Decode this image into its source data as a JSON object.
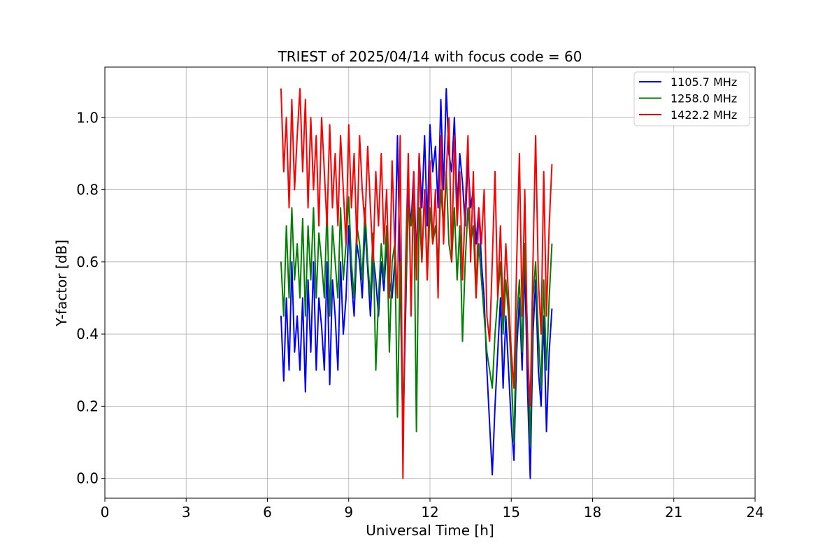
{
  "chart_data": {
    "type": "line",
    "title": "TRIEST of 2025/04/14 with focus code = 60",
    "xlabel": "Universal Time [h]",
    "ylabel": "Y-factor [dB]",
    "xlim": [
      0,
      24
    ],
    "ylim": [
      -0.055,
      1.14
    ],
    "xticks": [
      "0",
      "3",
      "6",
      "9",
      "12",
      "15",
      "18",
      "21",
      "24"
    ],
    "xtick_values": [
      0,
      3,
      6,
      9,
      12,
      15,
      18,
      21,
      24
    ],
    "yticks": [
      "0.0",
      "0.2",
      "0.4",
      "0.6",
      "0.8",
      "1.0"
    ],
    "ytick_values": [
      0.0,
      0.2,
      0.4,
      0.6,
      0.8,
      1.0
    ],
    "grid": true,
    "legend_position": "top-right",
    "series": [
      {
        "name": "1105.7 MHz",
        "color": "#0000ff",
        "x": [
          6.5,
          6.6,
          6.7,
          6.8,
          6.9,
          7.0,
          7.1,
          7.2,
          7.3,
          7.4,
          7.5,
          7.6,
          7.7,
          7.8,
          7.9,
          8.0,
          8.1,
          8.2,
          8.3,
          8.4,
          8.5,
          8.6,
          8.7,
          8.8,
          8.9,
          9.0,
          9.1,
          9.2,
          9.3,
          9.4,
          9.5,
          9.6,
          9.7,
          9.8,
          9.9,
          10.0,
          10.1,
          10.2,
          10.3,
          10.4,
          10.5,
          10.6,
          10.7,
          10.8,
          10.9,
          11.0,
          11.1,
          11.2,
          11.3,
          11.4,
          11.5,
          11.6,
          11.7,
          11.8,
          11.9,
          12.0,
          12.1,
          12.2,
          12.3,
          12.4,
          12.5,
          12.6,
          12.7,
          12.8,
          12.9,
          13.0,
          13.1,
          13.2,
          13.3,
          13.4,
          13.5,
          13.6,
          13.7,
          13.8,
          13.9,
          14.0,
          14.1,
          14.2,
          14.3,
          14.4,
          14.5,
          14.6,
          14.7,
          14.8,
          14.9,
          15.0,
          15.1,
          15.2,
          15.3,
          15.4,
          15.5,
          15.6,
          15.7,
          15.8,
          15.9,
          16.0,
          16.1,
          16.2,
          16.3,
          16.4,
          16.5
        ],
        "y": [
          0.45,
          0.27,
          0.5,
          0.3,
          0.6,
          0.35,
          0.45,
          0.3,
          0.5,
          0.24,
          0.55,
          0.35,
          0.6,
          0.3,
          0.5,
          0.42,
          0.3,
          0.6,
          0.26,
          0.55,
          0.45,
          0.3,
          0.6,
          0.4,
          0.5,
          0.7,
          0.55,
          0.45,
          0.65,
          0.6,
          0.5,
          0.7,
          0.58,
          0.45,
          0.62,
          0.55,
          0.45,
          0.6,
          0.52,
          0.65,
          0.55,
          0.5,
          0.6,
          0.95,
          0.55,
          0.12,
          0.45,
          0.8,
          0.7,
          0.85,
          0.6,
          0.9,
          0.75,
          0.95,
          0.7,
          0.98,
          0.85,
          0.92,
          0.75,
          1.05,
          0.8,
          1.08,
          0.9,
          0.85,
          1.0,
          0.75,
          0.9,
          0.82,
          0.7,
          0.88,
          0.75,
          0.8,
          0.65,
          0.75,
          0.6,
          0.5,
          0.3,
          0.15,
          0.01,
          0.2,
          0.35,
          0.5,
          0.25,
          0.45,
          0.3,
          0.15,
          0.05,
          0.35,
          0.5,
          0.3,
          0.6,
          0.25,
          0.0,
          0.4,
          0.55,
          0.3,
          0.2,
          0.45,
          0.13,
          0.35,
          0.47
        ]
      },
      {
        "name": "1258.0 MHz",
        "color": "#008000",
        "x": [
          6.5,
          6.6,
          6.7,
          6.8,
          6.9,
          7.0,
          7.1,
          7.2,
          7.3,
          7.4,
          7.5,
          7.6,
          7.7,
          7.8,
          7.9,
          8.0,
          8.1,
          8.2,
          8.3,
          8.4,
          8.5,
          8.6,
          8.7,
          8.8,
          8.9,
          9.0,
          9.1,
          9.2,
          9.3,
          9.4,
          9.5,
          9.6,
          9.7,
          9.8,
          9.9,
          10.0,
          10.1,
          10.2,
          10.3,
          10.4,
          10.5,
          10.6,
          10.7,
          10.8,
          10.9,
          11.0,
          11.1,
          11.2,
          11.3,
          11.4,
          11.5,
          11.6,
          11.7,
          11.8,
          11.9,
          12.0,
          12.1,
          12.2,
          12.3,
          12.4,
          12.5,
          12.6,
          12.7,
          12.8,
          12.9,
          13.0,
          13.1,
          13.2,
          13.3,
          13.4,
          13.5,
          13.6,
          13.7,
          13.8,
          13.9,
          14.0,
          14.1,
          14.2,
          14.3,
          14.4,
          14.5,
          14.6,
          14.7,
          14.8,
          14.9,
          15.0,
          15.1,
          15.2,
          15.3,
          15.4,
          15.5,
          15.6,
          15.7,
          15.8,
          15.9,
          16.0,
          16.1,
          16.2,
          16.3,
          16.4,
          16.5
        ],
        "y": [
          0.6,
          0.45,
          0.7,
          0.5,
          0.75,
          0.55,
          0.65,
          0.5,
          0.72,
          0.45,
          0.7,
          0.55,
          0.75,
          0.5,
          0.68,
          0.6,
          0.5,
          0.75,
          0.45,
          0.7,
          0.6,
          0.5,
          0.75,
          0.55,
          0.65,
          0.78,
          0.6,
          0.5,
          0.7,
          0.65,
          0.55,
          0.75,
          0.6,
          0.5,
          0.68,
          0.3,
          0.5,
          0.65,
          0.55,
          0.7,
          0.35,
          0.6,
          0.65,
          0.17,
          0.6,
          0.15,
          0.5,
          0.75,
          0.7,
          0.8,
          0.13,
          0.75,
          0.6,
          0.8,
          0.55,
          0.75,
          0.65,
          0.7,
          0.6,
          0.8,
          0.7,
          0.85,
          0.65,
          0.6,
          0.75,
          0.55,
          0.7,
          0.38,
          0.6,
          0.75,
          0.65,
          0.7,
          0.5,
          0.65,
          0.55,
          0.45,
          0.35,
          0.3,
          0.25,
          0.4,
          0.5,
          0.6,
          0.4,
          0.55,
          0.45,
          0.3,
          0.1,
          0.45,
          0.55,
          0.35,
          0.65,
          0.4,
          0.09,
          0.5,
          0.6,
          0.4,
          0.25,
          0.55,
          0.3,
          0.5,
          0.65
        ]
      },
      {
        "name": "1422.2 MHz",
        "color": "#ff0000",
        "x": [
          6.5,
          6.6,
          6.7,
          6.8,
          6.9,
          7.0,
          7.1,
          7.2,
          7.3,
          7.4,
          7.5,
          7.6,
          7.7,
          7.8,
          7.9,
          8.0,
          8.1,
          8.2,
          8.3,
          8.4,
          8.5,
          8.6,
          8.7,
          8.8,
          8.9,
          9.0,
          9.1,
          9.2,
          9.3,
          9.4,
          9.5,
          9.6,
          9.7,
          9.8,
          9.9,
          10.0,
          10.1,
          10.2,
          10.3,
          10.4,
          10.5,
          10.6,
          10.7,
          10.8,
          10.9,
          11.0,
          11.1,
          11.2,
          11.3,
          11.4,
          11.5,
          11.6,
          11.7,
          11.8,
          11.9,
          12.0,
          12.1,
          12.2,
          12.3,
          12.4,
          12.5,
          12.6,
          12.7,
          12.8,
          12.9,
          13.0,
          13.1,
          13.2,
          13.3,
          13.4,
          13.5,
          13.6,
          13.7,
          13.8,
          13.9,
          14.0,
          14.1,
          14.2,
          14.3,
          14.4,
          14.5,
          14.6,
          14.7,
          14.8,
          14.9,
          15.0,
          15.1,
          15.2,
          15.3,
          15.4,
          15.5,
          15.6,
          15.7,
          15.8,
          15.9,
          16.0,
          16.1,
          16.2,
          16.3,
          16.4,
          16.5
        ],
        "y": [
          1.08,
          0.85,
          1.0,
          0.75,
          1.05,
          0.8,
          0.95,
          1.08,
          0.85,
          1.05,
          0.75,
          1.0,
          0.8,
          0.95,
          0.7,
          1.0,
          0.85,
          0.7,
          0.98,
          0.75,
          0.9,
          0.7,
          0.95,
          0.8,
          0.65,
          0.98,
          0.75,
          0.9,
          0.65,
          0.95,
          0.8,
          0.7,
          0.92,
          0.75,
          0.6,
          0.85,
          0.7,
          0.9,
          0.65,
          0.8,
          0.5,
          0.88,
          0.65,
          0.5,
          0.95,
          0.0,
          0.6,
          0.9,
          0.45,
          0.85,
          0.55,
          0.9,
          0.6,
          0.8,
          0.55,
          0.88,
          0.65,
          0.8,
          0.5,
          0.95,
          0.65,
          0.85,
          1.0,
          0.6,
          0.95,
          0.7,
          0.85,
          0.55,
          0.75,
          0.95,
          0.6,
          0.85,
          0.5,
          0.75,
          0.65,
          0.8,
          0.45,
          0.38,
          0.6,
          0.85,
          0.5,
          0.7,
          0.45,
          0.65,
          0.5,
          0.35,
          0.25,
          0.6,
          0.9,
          0.45,
          0.8,
          0.35,
          0.2,
          0.6,
          0.95,
          0.55,
          0.4,
          0.85,
          0.45,
          0.7,
          0.87
        ]
      }
    ]
  }
}
